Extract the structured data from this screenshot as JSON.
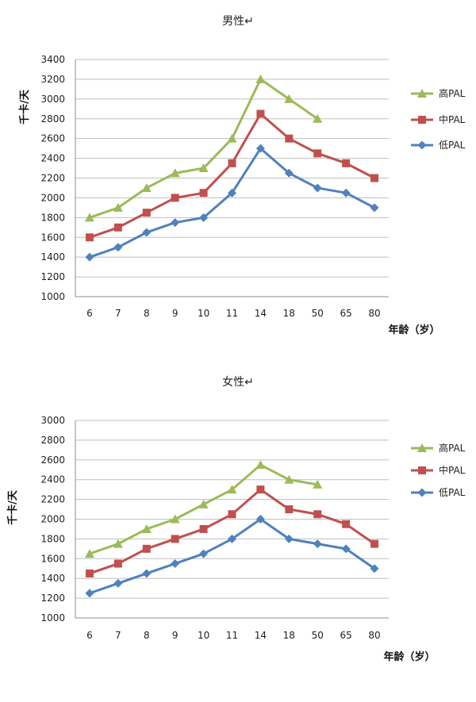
{
  "chart_data": [
    {
      "type": "line",
      "title": "男性↵",
      "ylabel": "千卡/天",
      "xlabel": "年龄（岁）",
      "categories": [
        "6",
        "7",
        "8",
        "9",
        "10",
        "11",
        "14",
        "18",
        "50",
        "65",
        "80"
      ],
      "ylim": [
        1000,
        3400
      ],
      "yticks": [
        1000,
        1200,
        1400,
        1600,
        1800,
        2000,
        2200,
        2400,
        2600,
        2800,
        3000,
        3200,
        3400
      ],
      "grid": true,
      "legend_position": "right",
      "series": [
        {
          "name": "高PAL",
          "color": "#9bbb59",
          "marker": "triangle",
          "values": [
            1800,
            1900,
            2100,
            2250,
            2300,
            2600,
            3200,
            3000,
            2800,
            null,
            null
          ]
        },
        {
          "name": "中PAL",
          "color": "#c0504d",
          "marker": "square",
          "values": [
            1600,
            1700,
            1850,
            2000,
            2050,
            2350,
            2850,
            2600,
            2450,
            2350,
            2200
          ]
        },
        {
          "name": "低PAL",
          "color": "#4f81bd",
          "marker": "diamond",
          "values": [
            1400,
            1500,
            1650,
            1750,
            1800,
            2050,
            2500,
            2250,
            2100,
            2050,
            1900
          ]
        }
      ]
    },
    {
      "type": "line",
      "title": "女性↵",
      "ylabel": "千卡/天",
      "xlabel": "年龄（岁）",
      "categories": [
        "6",
        "7",
        "8",
        "9",
        "10",
        "11",
        "14",
        "18",
        "50",
        "65",
        "80"
      ],
      "ylim": [
        1000,
        3000
      ],
      "yticks": [
        1000,
        1200,
        1400,
        1600,
        1800,
        2000,
        2200,
        2400,
        2600,
        2800,
        3000
      ],
      "grid": true,
      "legend_position": "right",
      "series": [
        {
          "name": "高PAL",
          "color": "#9bbb59",
          "marker": "triangle",
          "values": [
            1650,
            1750,
            1900,
            2000,
            2150,
            2300,
            2550,
            2400,
            2350,
            null,
            null
          ]
        },
        {
          "name": "中PAL",
          "color": "#c0504d",
          "marker": "square",
          "values": [
            1450,
            1550,
            1700,
            1800,
            1900,
            2050,
            2300,
            2100,
            2050,
            1950,
            1750
          ]
        },
        {
          "name": "低PAL",
          "color": "#4f81bd",
          "marker": "diamond",
          "values": [
            1250,
            1350,
            1450,
            1550,
            1650,
            1800,
            2000,
            1800,
            1750,
            1700,
            1500
          ]
        }
      ]
    }
  ]
}
